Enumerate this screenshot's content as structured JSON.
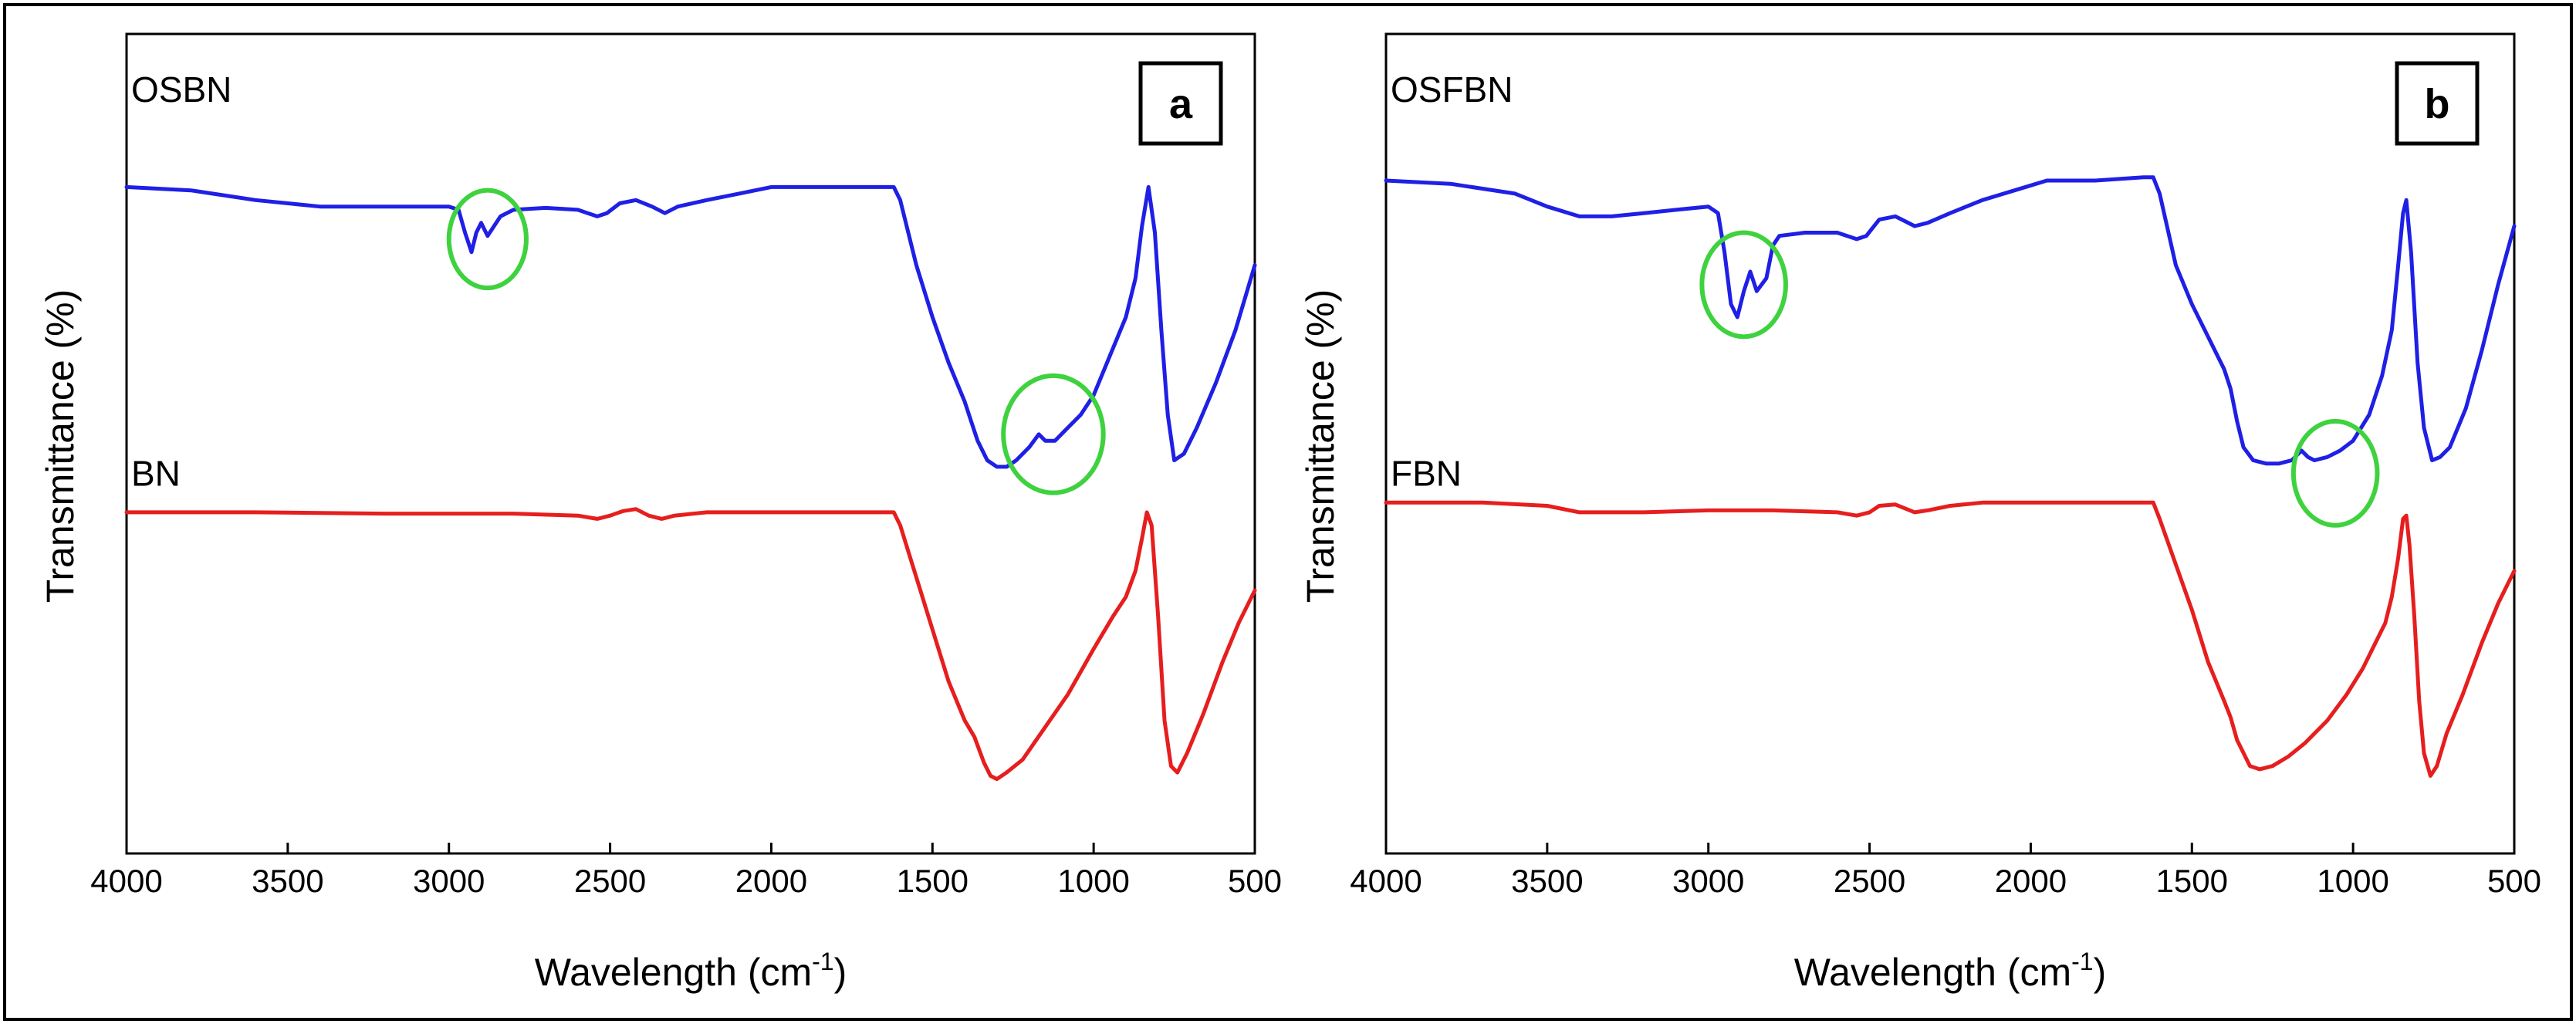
{
  "colors": {
    "modified": "#1f1fe6",
    "pristine": "#e61e1e",
    "highlight": "#3fd23f",
    "axis": "#000000"
  },
  "chart_data": [
    {
      "type": "line",
      "panel_label": "a",
      "xlabel_main": "Wavelength (cm",
      "xlabel_sup": "-1",
      "xlabel_close": ")",
      "ylabel": "Transmittance (%)",
      "xlim": [
        4000,
        500
      ],
      "ylim": [
        0,
        100
      ],
      "x_ticks": [
        "4000",
        "3500",
        "3000",
        "2500",
        "2000",
        "1500",
        "1000",
        "500"
      ],
      "series": [
        {
          "name": "OSBN",
          "color_key": "modified",
          "label_anchor": [
            4000,
            107
          ],
          "points": [
            [
              4000,
              92
            ],
            [
              3800,
              91.5
            ],
            [
              3600,
              90
            ],
            [
              3400,
              89
            ],
            [
              3200,
              89
            ],
            [
              3000,
              89
            ],
            [
              2970,
              88.5
            ],
            [
              2950,
              85
            ],
            [
              2930,
              82
            ],
            [
              2915,
              85
            ],
            [
              2900,
              86.5
            ],
            [
              2880,
              84.5
            ],
            [
              2860,
              86
            ],
            [
              2840,
              87.5
            ],
            [
              2800,
              88.5
            ],
            [
              2700,
              88.8
            ],
            [
              2600,
              88.5
            ],
            [
              2540,
              87.5
            ],
            [
              2510,
              88
            ],
            [
              2470,
              89.5
            ],
            [
              2420,
              90
            ],
            [
              2370,
              89
            ],
            [
              2330,
              88
            ],
            [
              2290,
              89
            ],
            [
              2200,
              90
            ],
            [
              2100,
              91
            ],
            [
              2000,
              92
            ],
            [
              1900,
              92
            ],
            [
              1800,
              92
            ],
            [
              1700,
              92
            ],
            [
              1620,
              92
            ],
            [
              1600,
              90
            ],
            [
              1550,
              80
            ],
            [
              1500,
              72
            ],
            [
              1450,
              65
            ],
            [
              1400,
              59
            ],
            [
              1380,
              56
            ],
            [
              1360,
              53
            ],
            [
              1330,
              50
            ],
            [
              1300,
              49
            ],
            [
              1270,
              49
            ],
            [
              1240,
              50
            ],
            [
              1200,
              52
            ],
            [
              1170,
              54
            ],
            [
              1150,
              53
            ],
            [
              1120,
              53
            ],
            [
              1080,
              55
            ],
            [
              1040,
              57
            ],
            [
              1000,
              60
            ],
            [
              950,
              66
            ],
            [
              900,
              72
            ],
            [
              870,
              78
            ],
            [
              850,
              86
            ],
            [
              830,
              92
            ],
            [
              810,
              85
            ],
            [
              790,
              70
            ],
            [
              770,
              57
            ],
            [
              750,
              50
            ],
            [
              720,
              51
            ],
            [
              680,
              55
            ],
            [
              620,
              62
            ],
            [
              560,
              70
            ],
            [
              500,
              80
            ]
          ]
        },
        {
          "name": "BN",
          "color_key": "pristine",
          "label_anchor": [
            4000,
            48
          ],
          "points": [
            [
              4000,
              42
            ],
            [
              3600,
              42
            ],
            [
              3200,
              41.8
            ],
            [
              3000,
              41.8
            ],
            [
              2800,
              41.8
            ],
            [
              2600,
              41.5
            ],
            [
              2540,
              41
            ],
            [
              2500,
              41.5
            ],
            [
              2460,
              42.2
            ],
            [
              2420,
              42.5
            ],
            [
              2380,
              41.5
            ],
            [
              2340,
              41
            ],
            [
              2300,
              41.5
            ],
            [
              2200,
              42
            ],
            [
              2000,
              42
            ],
            [
              1800,
              42
            ],
            [
              1620,
              42
            ],
            [
              1600,
              40
            ],
            [
              1550,
              32
            ],
            [
              1500,
              24
            ],
            [
              1450,
              16
            ],
            [
              1400,
              10
            ],
            [
              1370,
              7.5
            ],
            [
              1340,
              3.5
            ],
            [
              1320,
              1.5
            ],
            [
              1300,
              1
            ],
            [
              1270,
              2
            ],
            [
              1220,
              4
            ],
            [
              1150,
              9
            ],
            [
              1080,
              14
            ],
            [
              1000,
              21
            ],
            [
              940,
              26
            ],
            [
              900,
              29
            ],
            [
              870,
              33
            ],
            [
              850,
              38
            ],
            [
              835,
              42
            ],
            [
              820,
              40
            ],
            [
              800,
              26
            ],
            [
              780,
              10
            ],
            [
              760,
              3
            ],
            [
              740,
              2
            ],
            [
              710,
              5
            ],
            [
              660,
              11
            ],
            [
              600,
              19
            ],
            [
              550,
              25
            ],
            [
              500,
              30
            ]
          ]
        }
      ],
      "annotations": [
        {
          "type": "ellipse",
          "cx": 2880,
          "cy": 84,
          "rx": 120,
          "ry": 7.5
        },
        {
          "type": "ellipse",
          "cx": 1125,
          "cy": 54,
          "rx": 155,
          "ry": 9
        }
      ]
    },
    {
      "type": "line",
      "panel_label": "b",
      "xlabel_main": "Wavelength (cm",
      "xlabel_sup": "-1",
      "xlabel_close": ")",
      "ylabel": "Transmittance (%)",
      "xlim": [
        4000,
        500
      ],
      "ylim": [
        0,
        100
      ],
      "x_ticks": [
        "4000",
        "3500",
        "3000",
        "2500",
        "2000",
        "1500",
        "1000",
        "500"
      ],
      "series": [
        {
          "name": "OSFBN",
          "color_key": "modified",
          "label_anchor": [
            4000,
            107
          ],
          "points": [
            [
              4000,
              93
            ],
            [
              3800,
              92.5
            ],
            [
              3600,
              91
            ],
            [
              3500,
              89
            ],
            [
              3400,
              87.5
            ],
            [
              3300,
              87.5
            ],
            [
              3200,
              88
            ],
            [
              3100,
              88.5
            ],
            [
              3000,
              89
            ],
            [
              2970,
              88
            ],
            [
              2950,
              82
            ],
            [
              2930,
              74
            ],
            [
              2910,
              72
            ],
            [
              2890,
              76
            ],
            [
              2870,
              79
            ],
            [
              2850,
              76
            ],
            [
              2820,
              78
            ],
            [
              2800,
              83
            ],
            [
              2780,
              84.5
            ],
            [
              2700,
              85
            ],
            [
              2600,
              85
            ],
            [
              2540,
              84
            ],
            [
              2510,
              84.5
            ],
            [
              2470,
              87
            ],
            [
              2420,
              87.5
            ],
            [
              2360,
              86
            ],
            [
              2320,
              86.5
            ],
            [
              2250,
              88
            ],
            [
              2150,
              90
            ],
            [
              2050,
              91.5
            ],
            [
              1950,
              93
            ],
            [
              1800,
              93
            ],
            [
              1650,
              93.5
            ],
            [
              1620,
              93.5
            ],
            [
              1600,
              91
            ],
            [
              1550,
              80
            ],
            [
              1500,
              74
            ],
            [
              1450,
              69
            ],
            [
              1400,
              64
            ],
            [
              1380,
              61
            ],
            [
              1360,
              56
            ],
            [
              1340,
              52
            ],
            [
              1310,
              50
            ],
            [
              1270,
              49.5
            ],
            [
              1230,
              49.5
            ],
            [
              1190,
              50
            ],
            [
              1160,
              51.5
            ],
            [
              1140,
              50.5
            ],
            [
              1120,
              50
            ],
            [
              1080,
              50.5
            ],
            [
              1040,
              51.5
            ],
            [
              1000,
              53
            ],
            [
              950,
              57
            ],
            [
              910,
              63
            ],
            [
              880,
              70
            ],
            [
              860,
              80
            ],
            [
              845,
              88
            ],
            [
              835,
              90
            ],
            [
              820,
              82
            ],
            [
              800,
              65
            ],
            [
              780,
              55
            ],
            [
              755,
              50
            ],
            [
              730,
              50.5
            ],
            [
              700,
              52
            ],
            [
              650,
              58
            ],
            [
              600,
              67
            ],
            [
              550,
              77
            ],
            [
              500,
              86
            ]
          ]
        },
        {
          "name": "FBN",
          "color_key": "pristine",
          "label_anchor": [
            4000,
            48
          ],
          "points": [
            [
              4000,
              43.5
            ],
            [
              3700,
              43.5
            ],
            [
              3500,
              43
            ],
            [
              3400,
              42
            ],
            [
              3200,
              42
            ],
            [
              3000,
              42.3
            ],
            [
              2800,
              42.3
            ],
            [
              2600,
              42
            ],
            [
              2540,
              41.5
            ],
            [
              2500,
              42
            ],
            [
              2470,
              43
            ],
            [
              2420,
              43.2
            ],
            [
              2360,
              42
            ],
            [
              2320,
              42.3
            ],
            [
              2250,
              43
            ],
            [
              2150,
              43.5
            ],
            [
              2000,
              43.5
            ],
            [
              1800,
              43.5
            ],
            [
              1620,
              43.5
            ],
            [
              1600,
              41
            ],
            [
              1550,
              34
            ],
            [
              1500,
              27
            ],
            [
              1450,
              19
            ],
            [
              1400,
              13
            ],
            [
              1380,
              10.5
            ],
            [
              1360,
              7
            ],
            [
              1320,
              3
            ],
            [
              1290,
              2.5
            ],
            [
              1250,
              3
            ],
            [
              1200,
              4.5
            ],
            [
              1150,
              6.5
            ],
            [
              1080,
              10
            ],
            [
              1020,
              14
            ],
            [
              970,
              18
            ],
            [
              930,
              22
            ],
            [
              900,
              25
            ],
            [
              880,
              29
            ],
            [
              860,
              35
            ],
            [
              845,
              41
            ],
            [
              835,
              41.5
            ],
            [
              825,
              37
            ],
            [
              810,
              26
            ],
            [
              795,
              13
            ],
            [
              780,
              5
            ],
            [
              760,
              1.5
            ],
            [
              740,
              3
            ],
            [
              710,
              8
            ],
            [
              660,
              14
            ],
            [
              600,
              22
            ],
            [
              550,
              28
            ],
            [
              500,
              33
            ]
          ]
        }
      ],
      "annotations": [
        {
          "type": "ellipse",
          "cx": 2890,
          "cy": 77,
          "rx": 130,
          "ry": 8
        },
        {
          "type": "ellipse",
          "cx": 1055,
          "cy": 48,
          "rx": 130,
          "ry": 8
        }
      ]
    }
  ]
}
